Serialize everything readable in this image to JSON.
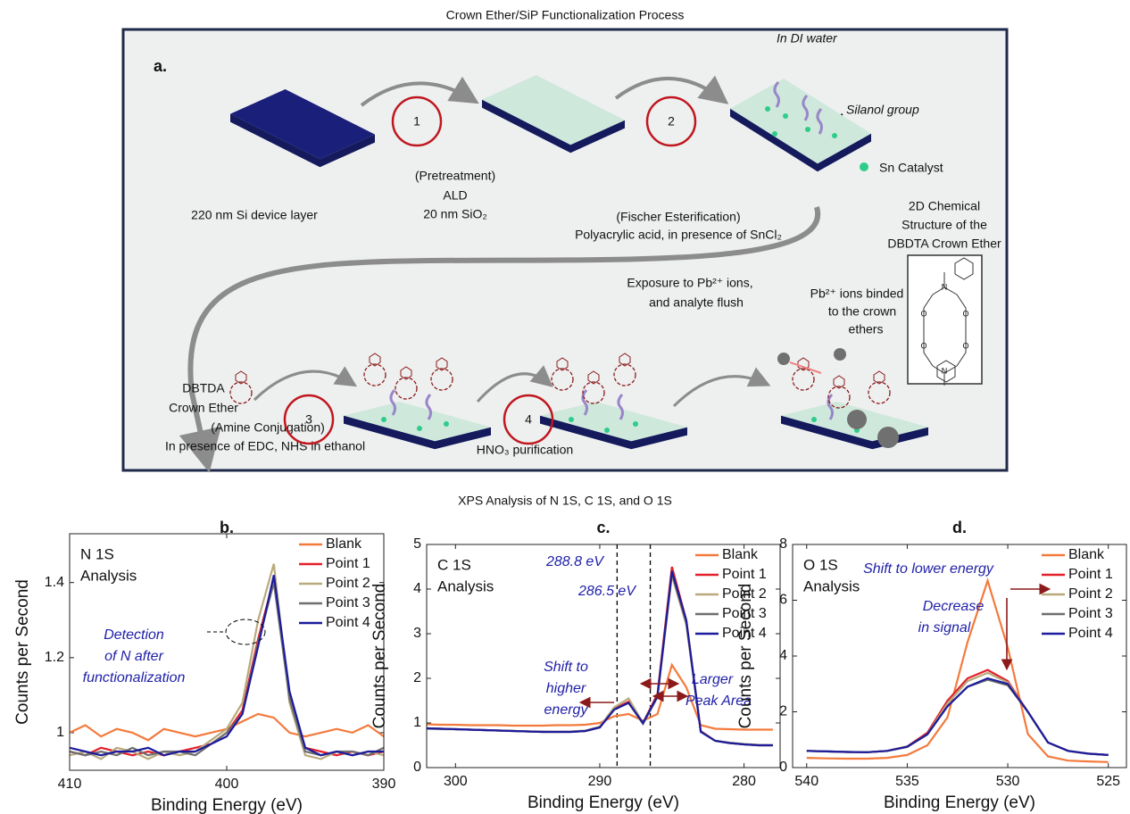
{
  "figure": {
    "title": "Crown Ether/SiP Functionalization Process",
    "panel_label": "a.",
    "steps": [
      "1",
      "2",
      "3",
      "4"
    ],
    "in_di_water": "In DI water",
    "silanol_group": "Silanol group",
    "sn_catalyst": "Sn Catalyst",
    "structure_caption": [
      "2D Chemical",
      "Structure of the",
      "DBDTA Crown Ether"
    ],
    "structure_atoms": [
      "N",
      "O",
      "O",
      "O",
      "O",
      "N"
    ],
    "si_layer": "220 nm Si device layer",
    "step1_text": [
      "(Pretreatment)",
      "ALD",
      "20 nm SiO₂"
    ],
    "step2_text": [
      "(Fischer Esterification)",
      "Polyacrylic acid, in presence of SnCl₂"
    ],
    "exposure_text": [
      "Exposure to Pb²⁺ ions,",
      "and analyte flush"
    ],
    "binded_text": [
      "Pb²⁺ ions binded",
      "to the crown",
      "ethers"
    ],
    "crown_ether_text": [
      "DBTDA",
      "Crown Ether"
    ],
    "step3_text": [
      "(Amine Conjugation)",
      "In presence of EDC, NHS in ethanol"
    ],
    "step4_text": "HNO₃ purification"
  },
  "xps_title": "XPS Analysis of N 1S, C 1S, and O 1S",
  "chart_data": [
    {
      "type": "line",
      "panel_label": "b.",
      "annotation": [
        "N 1S",
        "Analysis"
      ],
      "notes": [
        "Detection",
        "of N after",
        "functionalization"
      ],
      "xlabel": "Binding Energy (eV)",
      "ylabel": "Counts per Second",
      "x": [
        410,
        409,
        408,
        407,
        406,
        405,
        404,
        403,
        402,
        401,
        400,
        399,
        398,
        397,
        396,
        395,
        394,
        393,
        392,
        391,
        390
      ],
      "xlim": [
        410,
        390
      ],
      "xticks": [
        410,
        400,
        390
      ],
      "ylim": [
        0.9,
        1.53
      ],
      "yticks": [
        1,
        1.2,
        1.4
      ],
      "legend": "upper right",
      "series": [
        {
          "name": "Blank",
          "color": "#f47a3c",
          "values": [
            1.0,
            1.02,
            0.99,
            1.01,
            1.0,
            0.98,
            1.01,
            1.0,
            0.99,
            1.0,
            1.01,
            1.03,
            1.05,
            1.04,
            1.0,
            0.99,
            1.0,
            1.01,
            1.0,
            1.02,
            0.99
          ]
        },
        {
          "name": "Point 1",
          "color": "#e3202a",
          "values": [
            0.95,
            0.94,
            0.96,
            0.95,
            0.94,
            0.95,
            0.94,
            0.95,
            0.96,
            0.97,
            1.0,
            1.06,
            1.25,
            1.41,
            1.1,
            0.96,
            0.95,
            0.94,
            0.95,
            0.94,
            0.95
          ]
        },
        {
          "name": "Point 2",
          "color": "#b9aa7c",
          "values": [
            0.94,
            0.95,
            0.93,
            0.96,
            0.95,
            0.93,
            0.95,
            0.94,
            0.95,
            0.98,
            1.01,
            1.08,
            1.3,
            1.45,
            1.08,
            0.94,
            0.93,
            0.95,
            0.94,
            0.95,
            0.94
          ]
        },
        {
          "name": "Point 3",
          "color": "#6f6f6f",
          "values": [
            0.95,
            0.94,
            0.95,
            0.94,
            0.96,
            0.94,
            0.95,
            0.95,
            0.94,
            0.97,
            1.0,
            1.05,
            1.24,
            1.4,
            1.09,
            0.95,
            0.94,
            0.95,
            0.95,
            0.94,
            0.96
          ]
        },
        {
          "name": "Point 4",
          "color": "#1c1c9c",
          "values": [
            0.96,
            0.95,
            0.94,
            0.95,
            0.95,
            0.96,
            0.94,
            0.95,
            0.95,
            0.97,
            0.99,
            1.05,
            1.23,
            1.42,
            1.11,
            0.96,
            0.94,
            0.95,
            0.94,
            0.95,
            0.95
          ]
        }
      ]
    },
    {
      "type": "line",
      "panel_label": "c.",
      "annotation": [
        "C 1S",
        "Analysis"
      ],
      "notes": [
        "Shift to",
        "higher",
        "energy",
        "Larger",
        "Peak Area"
      ],
      "ref_lines": [
        288.8,
        286.5
      ],
      "ref_labels": [
        "288.8 eV",
        "286.5 eV"
      ],
      "xlabel": "Binding Energy (eV)",
      "ylabel": "Counts per Second",
      "x": [
        302,
        301,
        300,
        299,
        298,
        297,
        296,
        295,
        294,
        293,
        292,
        291,
        290,
        289,
        288,
        287,
        286,
        285,
        284,
        283,
        282,
        281,
        280,
        279,
        278
      ],
      "xlim": [
        302,
        277.5
      ],
      "xticks": [
        300,
        290,
        280
      ],
      "ylim": [
        0,
        5
      ],
      "yticks": [
        0,
        1,
        2,
        3,
        4,
        5
      ],
      "legend": "upper right",
      "series": [
        {
          "name": "Blank",
          "color": "#f47a3c",
          "values": [
            0.97,
            0.96,
            0.96,
            0.95,
            0.95,
            0.95,
            0.94,
            0.94,
            0.94,
            0.95,
            0.95,
            0.96,
            1.0,
            1.15,
            1.2,
            1.05,
            1.2,
            2.3,
            1.8,
            0.95,
            0.87,
            0.86,
            0.85,
            0.85,
            0.85
          ]
        },
        {
          "name": "Point 1",
          "color": "#e3202a",
          "values": [
            0.88,
            0.87,
            0.86,
            0.85,
            0.84,
            0.83,
            0.82,
            0.81,
            0.8,
            0.8,
            0.8,
            0.82,
            0.9,
            1.32,
            1.48,
            1.0,
            1.65,
            4.5,
            3.3,
            0.82,
            0.6,
            0.55,
            0.52,
            0.5,
            0.5
          ]
        },
        {
          "name": "Point 2",
          "color": "#b9aa7c",
          "values": [
            0.87,
            0.86,
            0.86,
            0.85,
            0.84,
            0.83,
            0.82,
            0.81,
            0.81,
            0.8,
            0.81,
            0.83,
            0.92,
            1.35,
            1.55,
            1.0,
            1.6,
            4.3,
            3.2,
            0.8,
            0.6,
            0.56,
            0.53,
            0.51,
            0.5
          ]
        },
        {
          "name": "Point 3",
          "color": "#6f6f6f",
          "values": [
            0.88,
            0.87,
            0.86,
            0.85,
            0.84,
            0.83,
            0.82,
            0.81,
            0.8,
            0.8,
            0.8,
            0.82,
            0.9,
            1.3,
            1.45,
            0.98,
            1.58,
            4.35,
            3.25,
            0.81,
            0.6,
            0.55,
            0.52,
            0.5,
            0.5
          ]
        },
        {
          "name": "Point 4",
          "color": "#1c1c9c",
          "values": [
            0.88,
            0.87,
            0.86,
            0.85,
            0.84,
            0.83,
            0.82,
            0.81,
            0.8,
            0.8,
            0.8,
            0.82,
            0.9,
            1.3,
            1.45,
            1.0,
            1.6,
            4.4,
            3.3,
            0.8,
            0.6,
            0.55,
            0.52,
            0.5,
            0.5
          ]
        }
      ]
    },
    {
      "type": "line",
      "panel_label": "d.",
      "annotation": [
        "O 1S",
        "Analysis"
      ],
      "notes": [
        "Shift to lower energy",
        "Decrease",
        "in signal"
      ],
      "xlabel": "Binding Energy (eV)",
      "ylabel": "Counts per Second",
      "x": [
        540,
        539,
        538,
        537,
        536,
        535,
        534,
        533,
        532,
        531,
        530,
        529,
        528,
        527,
        526,
        525
      ],
      "xlim": [
        540.7,
        524.1
      ],
      "xticks": [
        540,
        535,
        530,
        525
      ],
      "ylim": [
        0,
        8
      ],
      "yticks": [
        0,
        2,
        4,
        6,
        8
      ],
      "legend": "upper right",
      "series": [
        {
          "name": "Blank",
          "color": "#f47a3c",
          "values": [
            0.35,
            0.33,
            0.32,
            0.32,
            0.35,
            0.45,
            0.8,
            1.8,
            4.5,
            6.7,
            4.3,
            1.2,
            0.4,
            0.25,
            0.22,
            0.2
          ]
        },
        {
          "name": "Point 1",
          "color": "#e3202a",
          "values": [
            0.6,
            0.58,
            0.56,
            0.55,
            0.6,
            0.76,
            1.25,
            2.4,
            3.2,
            3.5,
            3.1,
            2.0,
            0.9,
            0.6,
            0.5,
            0.45
          ]
        },
        {
          "name": "Point 2",
          "color": "#b9aa7c",
          "values": [
            0.6,
            0.58,
            0.56,
            0.55,
            0.6,
            0.75,
            1.2,
            2.3,
            3.1,
            3.4,
            3.05,
            2.0,
            0.9,
            0.6,
            0.5,
            0.45
          ]
        },
        {
          "name": "Point 3",
          "color": "#6f6f6f",
          "values": [
            0.6,
            0.58,
            0.56,
            0.55,
            0.6,
            0.74,
            1.18,
            2.2,
            2.9,
            3.15,
            2.95,
            2.0,
            0.9,
            0.6,
            0.5,
            0.45
          ]
        },
        {
          "name": "Point 4",
          "color": "#1c1c9c",
          "values": [
            0.6,
            0.58,
            0.56,
            0.55,
            0.6,
            0.75,
            1.2,
            2.2,
            2.9,
            3.2,
            3.0,
            2.0,
            0.9,
            0.6,
            0.5,
            0.45
          ]
        }
      ]
    }
  ]
}
